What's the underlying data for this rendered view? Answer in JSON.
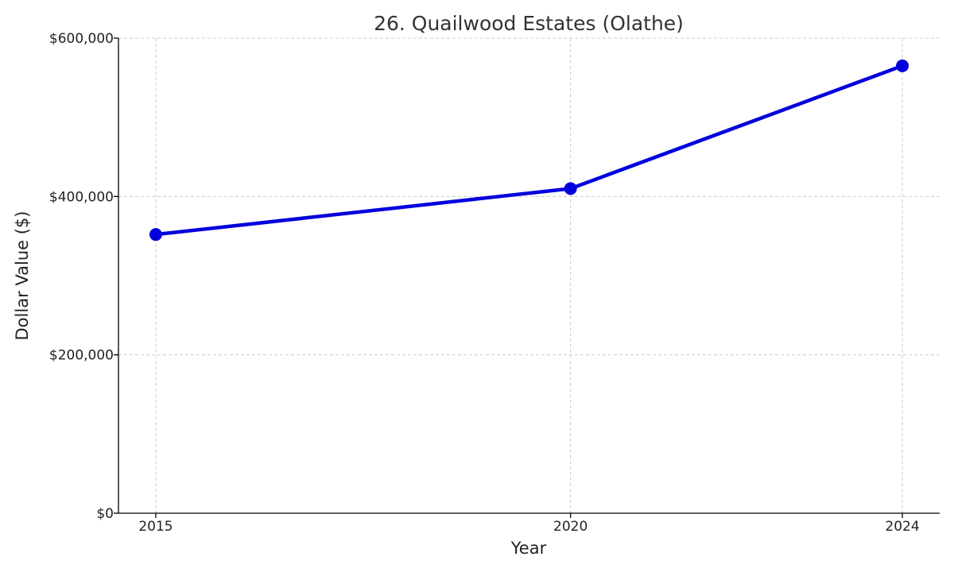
{
  "chart_data": {
    "type": "line",
    "title": "26. Quailwood Estates (Olathe)",
    "xlabel": "Year",
    "ylabel": "Dollar Value ($)",
    "x": [
      2015,
      2020,
      2024
    ],
    "series": [
      {
        "values": [
          352000,
          410000,
          565000
        ],
        "color": "#0000dd",
        "marker": "circle"
      }
    ],
    "x_tick_labels": [
      "2015",
      "2020",
      "2024"
    ],
    "y_ticks": [
      0,
      200000,
      400000,
      600000
    ],
    "y_tick_labels": [
      "$0",
      "$200,000",
      "$400,000",
      "$600,000"
    ],
    "xlim": [
      2014.55,
      2024.45
    ],
    "ylim": [
      0,
      600000
    ],
    "grid": true,
    "grid_style": "dashed"
  }
}
